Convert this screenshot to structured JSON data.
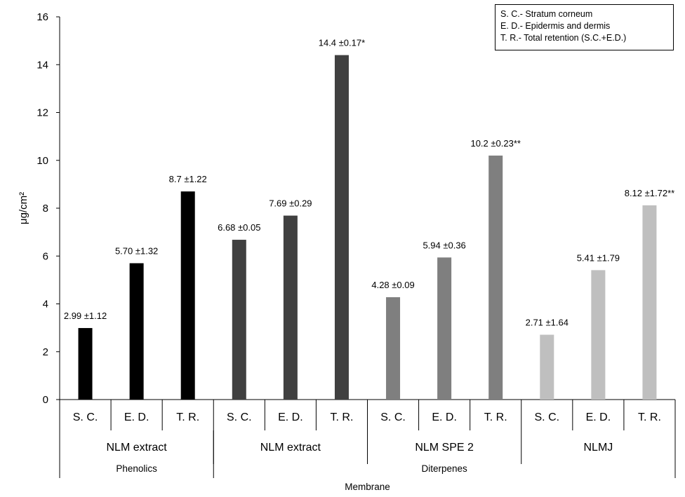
{
  "chart_data": {
    "type": "bar",
    "ylabel": "μg/cm²",
    "xlabel": "Membrane",
    "ylim": [
      0,
      16
    ],
    "yticks": [
      0,
      2,
      4,
      6,
      8,
      10,
      12,
      14,
      16
    ],
    "grid": false,
    "legend_position": "top-right",
    "legend_notes": [
      "S. C.- Stratum corneum",
      "E. D.- Epidermis and dermis",
      "T. R.- Total retention (S.C.+E.D.)"
    ],
    "categories": [
      "S. C.",
      "E. D.",
      "T. R.",
      "S. C.",
      "E. D.",
      "T. R.",
      "S. C.",
      "E. D.",
      "T. R.",
      "S. C.",
      "E. D.",
      "T. R."
    ],
    "values": [
      2.99,
      5.7,
      8.7,
      6.68,
      7.69,
      14.4,
      4.28,
      5.94,
      10.2,
      2.71,
      5.41,
      8.12
    ],
    "data_labels": [
      "2.99 ±1.12",
      "5.70 ±1.32",
      "8.7 ±1.22",
      "6.68 ±0.05",
      "7.69 ±0.29",
      "14.4 ±0.17*",
      "4.28 ±0.09",
      "5.94 ±0.36",
      "10.2 ±0.23**",
      "2.71 ±1.64",
      "5.41 ±1.79",
      "8.12 ±1.72**"
    ],
    "groups": [
      {
        "label": "NLM extract",
        "span": 3,
        "color": "#000000"
      },
      {
        "label": "NLM extract",
        "span": 3,
        "color": "#404040"
      },
      {
        "label": "NLM SPE 2",
        "span": 3,
        "color": "#7f7f7f"
      },
      {
        "label": "NLMJ",
        "span": 3,
        "color": "#bfbfbf"
      }
    ],
    "supergroups": [
      {
        "label": "Phenolics",
        "span": 3
      },
      {
        "label": "Diterpenes",
        "span": 9
      }
    ]
  }
}
